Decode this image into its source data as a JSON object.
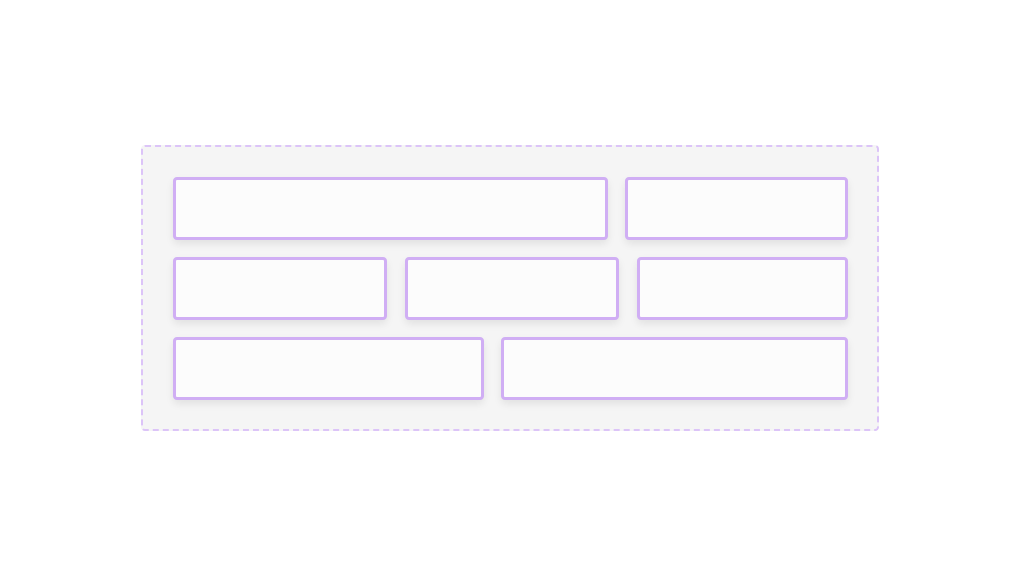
{
  "colors": {
    "container_border": "#dcc4f8",
    "container_fill": "#f5f5f5",
    "box_border": "#d0aef4",
    "box_fill": "#fcfcfc"
  },
  "rows": [
    {
      "items": [
        "box-1",
        "box-2"
      ]
    },
    {
      "items": [
        "box-3",
        "box-4",
        "box-5"
      ]
    },
    {
      "items": [
        "box-6",
        "box-7"
      ]
    }
  ]
}
